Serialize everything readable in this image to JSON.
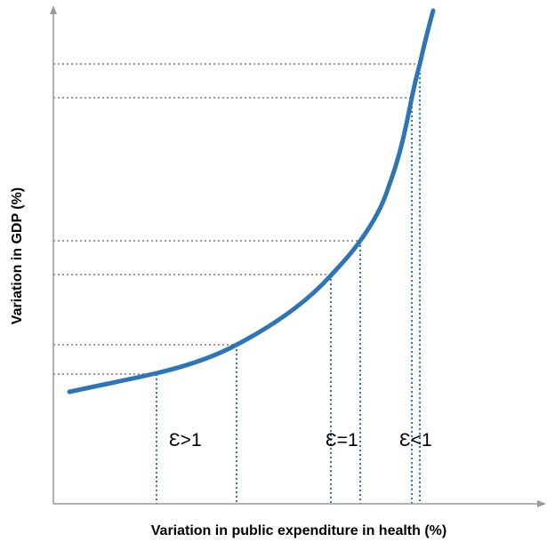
{
  "axes": {
    "x_label": "Variation in public expenditure in health (%)",
    "y_label": "Variation in GDP (%)"
  },
  "annotations": [
    "Ɛ>1",
    "Ɛ=1",
    "Ɛ<1"
  ]
}
